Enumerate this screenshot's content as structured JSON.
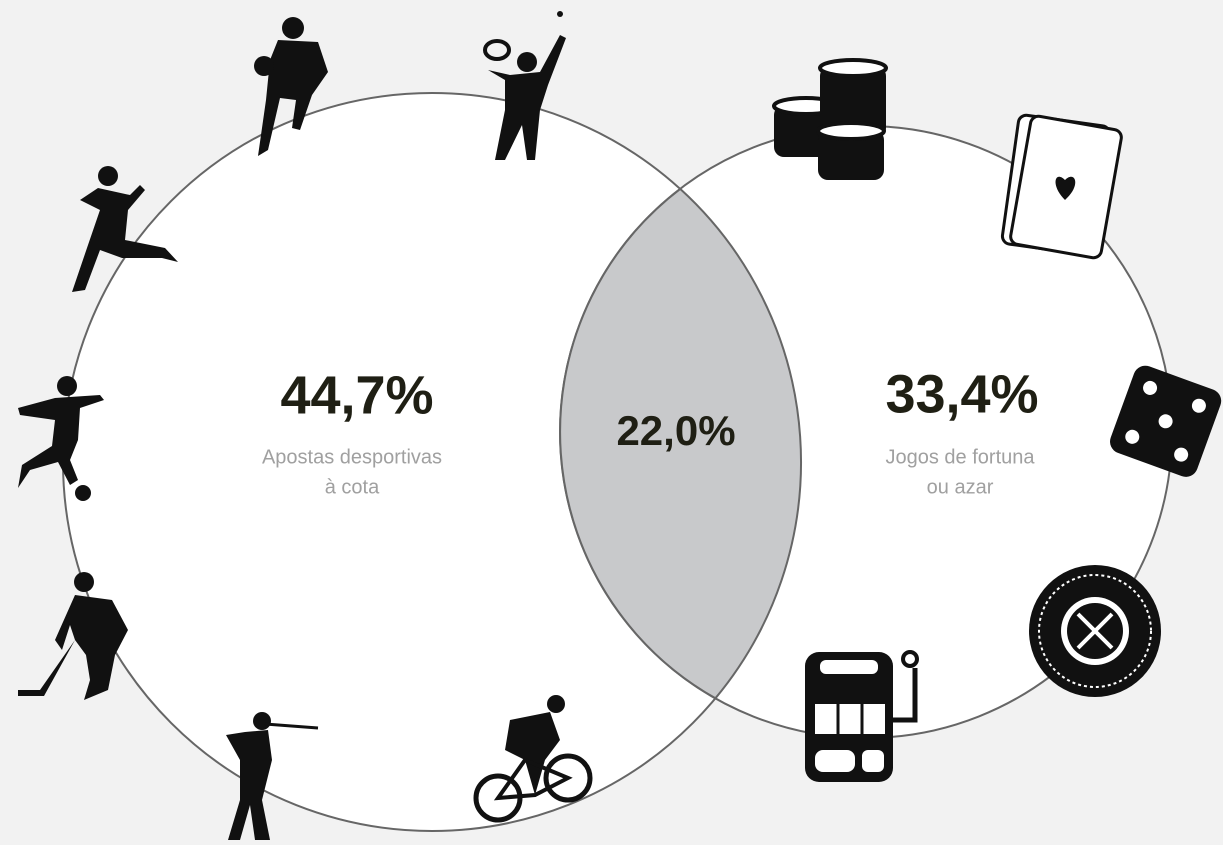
{
  "left": {
    "value": "44,7%",
    "label": [
      "Apostas desportivas",
      "à cota"
    ]
  },
  "right": {
    "value": "33,4%",
    "label": [
      "Jogos de fortuna",
      "ou azar"
    ]
  },
  "overlap": {
    "value": "22,0%"
  }
}
